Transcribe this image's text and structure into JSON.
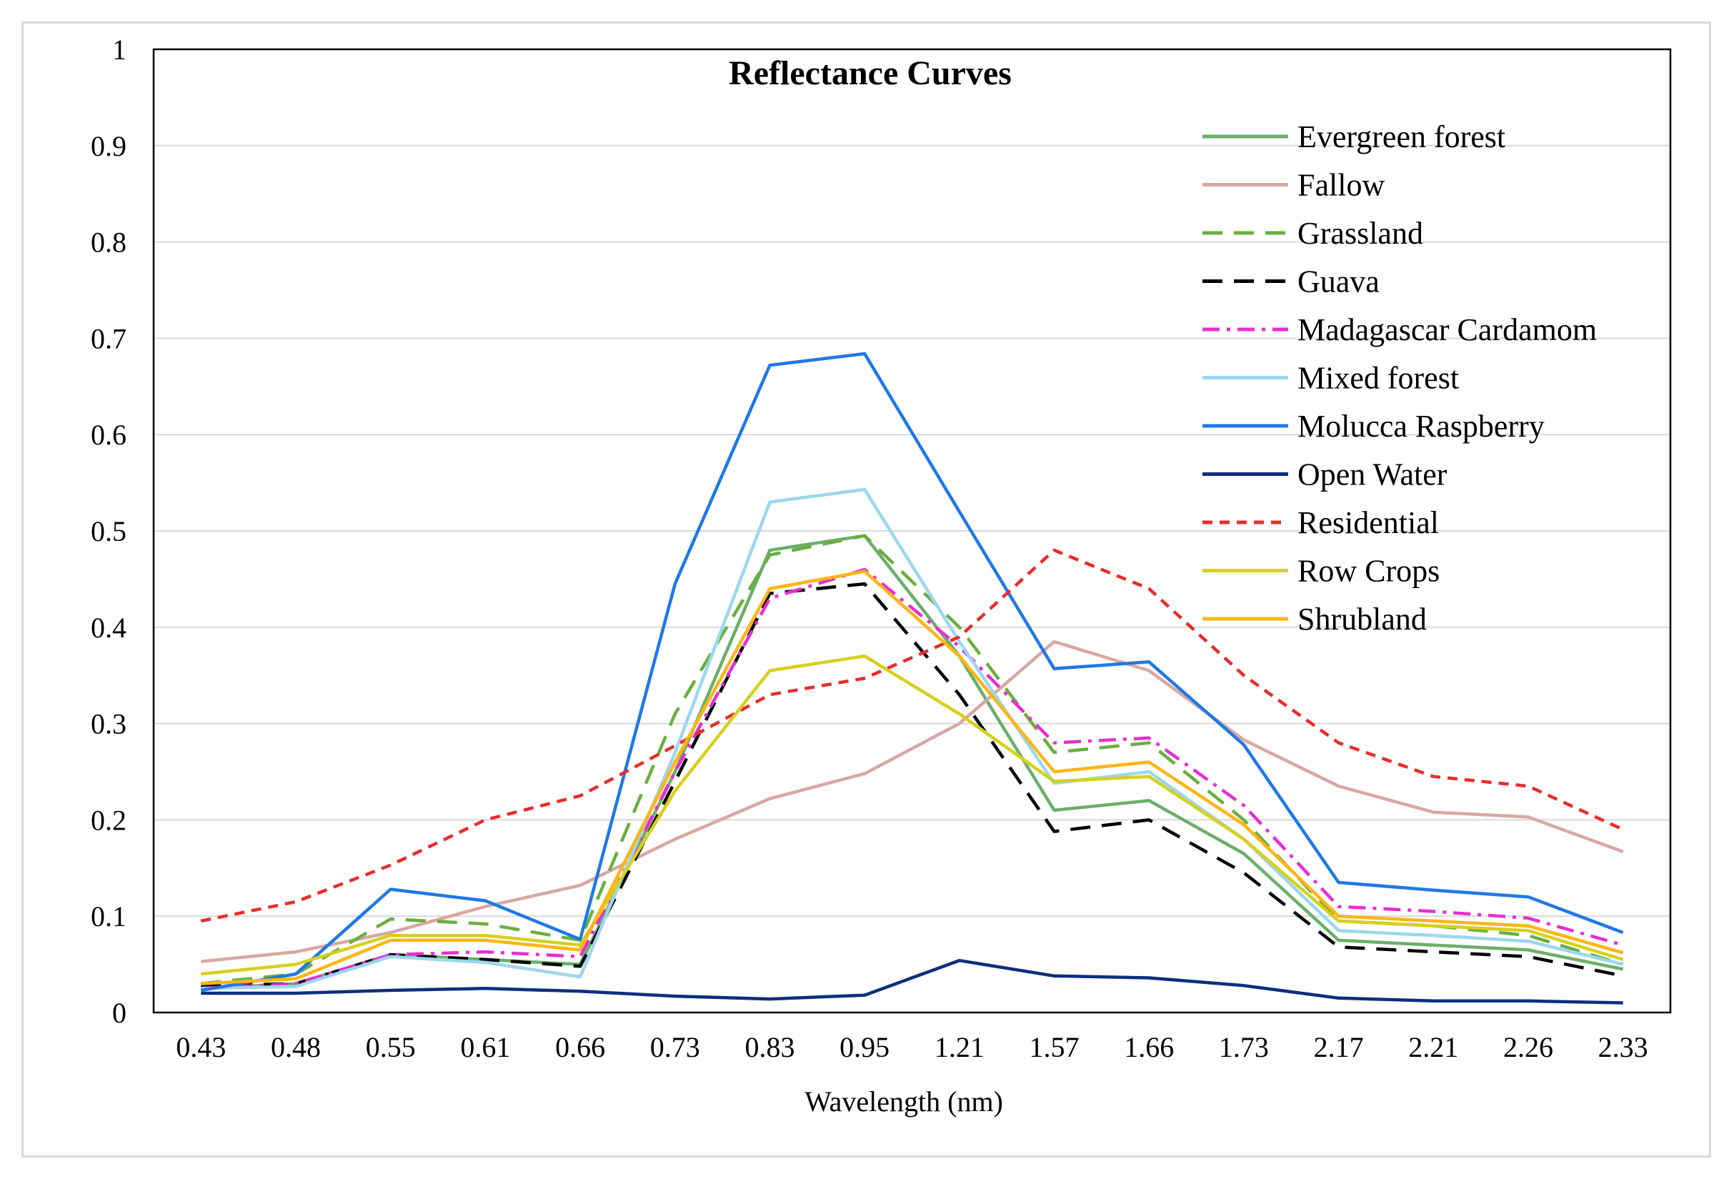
{
  "chart_data": {
    "type": "line",
    "title": "Reflectance Curves",
    "xlabel": "Wavelength (nm)",
    "ylabel": "",
    "ylim": [
      0,
      1
    ],
    "yticks": [
      "0",
      "0.1",
      "0.2",
      "0.3",
      "0.4",
      "0.5",
      "0.6",
      "0.7",
      "0.8",
      "0.9",
      "1"
    ],
    "categories": [
      "0.43",
      "0.48",
      "0.55",
      "0.61",
      "0.66",
      "0.73",
      "0.83",
      "0.95",
      "1.21",
      "1.57",
      "1.66",
      "1.73",
      "2.17",
      "2.21",
      "2.26",
      "2.33"
    ],
    "grid": true,
    "legend_position": "top-right",
    "series": [
      {
        "name": "Evergreen forest",
        "color": "#6aaf6a",
        "style": "solid",
        "values": [
          0.025,
          0.03,
          0.06,
          0.055,
          0.05,
          0.25,
          0.48,
          0.495,
          0.37,
          0.21,
          0.22,
          0.165,
          0.075,
          0.07,
          0.065,
          0.045
        ]
      },
      {
        "name": "Fallow",
        "color": "#d9a7a3",
        "style": "solid",
        "values": [
          0.053,
          0.063,
          0.083,
          0.11,
          0.132,
          0.18,
          0.222,
          0.248,
          0.3,
          0.385,
          0.355,
          0.283,
          0.235,
          0.208,
          0.203,
          0.167
        ]
      },
      {
        "name": "Grassland",
        "color": "#6aaf3c",
        "style": "dash",
        "values": [
          0.03,
          0.04,
          0.097,
          0.092,
          0.075,
          0.31,
          0.475,
          0.495,
          0.4,
          0.27,
          0.28,
          0.2,
          0.095,
          0.09,
          0.08,
          0.05
        ]
      },
      {
        "name": "Guava",
        "color": "#000000",
        "style": "dash",
        "values": [
          0.028,
          0.03,
          0.06,
          0.055,
          0.048,
          0.24,
          0.435,
          0.445,
          0.33,
          0.188,
          0.2,
          0.145,
          0.068,
          0.063,
          0.058,
          0.038
        ]
      },
      {
        "name": "Madagascar Cardamom",
        "color": "#e62fd0",
        "style": "dashdot",
        "values": [
          0.025,
          0.03,
          0.06,
          0.063,
          0.058,
          0.25,
          0.43,
          0.46,
          0.38,
          0.28,
          0.285,
          0.215,
          0.11,
          0.105,
          0.098,
          0.07
        ]
      },
      {
        "name": "Mixed forest",
        "color": "#9bd7ef",
        "style": "solid",
        "values": [
          0.025,
          0.027,
          0.058,
          0.052,
          0.037,
          0.27,
          0.53,
          0.543,
          0.385,
          0.238,
          0.25,
          0.18,
          0.085,
          0.08,
          0.074,
          0.05
        ]
      },
      {
        "name": "Molucca Raspberry",
        "color": "#1f78e6",
        "style": "solid",
        "values": [
          0.023,
          0.04,
          0.128,
          0.116,
          0.076,
          0.445,
          0.672,
          0.684,
          0.52,
          0.357,
          0.364,
          0.278,
          0.135,
          0.127,
          0.12,
          0.083
        ]
      },
      {
        "name": "Open Water",
        "color": "#0c2f7d",
        "style": "solid",
        "values": [
          0.02,
          0.02,
          0.023,
          0.025,
          0.022,
          0.017,
          0.014,
          0.018,
          0.054,
          0.038,
          0.036,
          0.028,
          0.015,
          0.012,
          0.012,
          0.01
        ]
      },
      {
        "name": "Residential",
        "color": "#e82c2c",
        "style": "shortdash",
        "values": [
          0.095,
          0.115,
          0.153,
          0.2,
          0.225,
          0.277,
          0.33,
          0.347,
          0.39,
          0.48,
          0.44,
          0.35,
          0.28,
          0.245,
          0.235,
          0.19
        ]
      },
      {
        "name": "Row Crops",
        "color": "#d6d01d",
        "style": "solid",
        "values": [
          0.04,
          0.05,
          0.08,
          0.08,
          0.07,
          0.23,
          0.355,
          0.37,
          0.31,
          0.24,
          0.245,
          0.18,
          0.095,
          0.09,
          0.085,
          0.055
        ]
      },
      {
        "name": "Shrubland",
        "color": "#fdb515",
        "style": "solid",
        "values": [
          0.03,
          0.035,
          0.075,
          0.075,
          0.065,
          0.26,
          0.44,
          0.458,
          0.37,
          0.25,
          0.26,
          0.195,
          0.1,
          0.095,
          0.09,
          0.062
        ]
      }
    ]
  }
}
